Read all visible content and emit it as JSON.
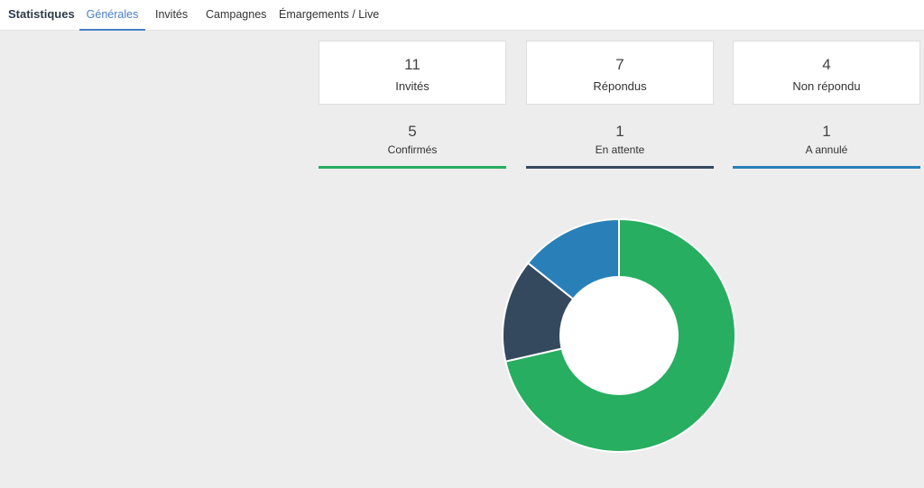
{
  "header": {
    "brand": "Statistiques",
    "tabs": [
      {
        "label": "Générales",
        "active": true
      },
      {
        "label": "Invités",
        "active": false
      },
      {
        "label": "Campagnes",
        "active": false
      },
      {
        "label": "Émargements / Live",
        "active": false
      }
    ]
  },
  "summary": [
    {
      "value": "11",
      "label": "Invités"
    },
    {
      "value": "7",
      "label": "Répondus"
    },
    {
      "value": "4",
      "label": "Non répondu"
    }
  ],
  "status": [
    {
      "value": "5",
      "label": "Confirmés",
      "color": "#27ae60"
    },
    {
      "value": "1",
      "label": "En attente",
      "color": "#34495e"
    },
    {
      "value": "1",
      "label": "A annulé",
      "color": "#2980b9"
    }
  ],
  "chart_data": {
    "type": "pie",
    "categories": [
      "Confirmés",
      "En attente",
      "A annulé"
    ],
    "values": [
      5,
      1,
      1
    ],
    "colors": [
      "#27ae60",
      "#34495e",
      "#2980b9"
    ],
    "donut": true
  }
}
